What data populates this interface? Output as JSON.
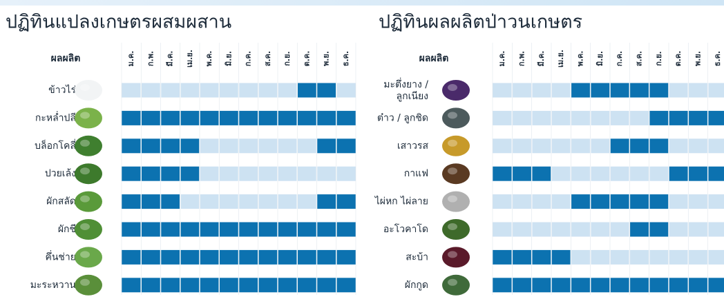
{
  "months": [
    "ม.ค.",
    "ก.พ.",
    "มี.ค.",
    "เม.ย.",
    "พ.ค.",
    "มิ.ย.",
    "ก.ค.",
    "ส.ค.",
    "ก.ย.",
    "ต.ค.",
    "พ.ย.",
    "ธ.ค."
  ],
  "tables": [
    {
      "title": "ปฏิทินแปลงเกษตรผสมผสาน",
      "header": "ผลผลิต",
      "rows": [
        {
          "label": "ข้าวไร่",
          "harvest": [
            0,
            0,
            0,
            0,
            0,
            0,
            0,
            0,
            0,
            1,
            1,
            0
          ]
        },
        {
          "label": "กะหล่ำปลี",
          "harvest": [
            1,
            1,
            1,
            1,
            1,
            1,
            1,
            1,
            1,
            1,
            1,
            1
          ]
        },
        {
          "label": "บล็อกโคลี่",
          "harvest": [
            1,
            1,
            1,
            1,
            0,
            0,
            0,
            0,
            0,
            0,
            1,
            1
          ]
        },
        {
          "label": "ปวยเล้ง",
          "harvest": [
            1,
            1,
            1,
            1,
            0,
            0,
            0,
            0,
            0,
            0,
            0,
            0
          ]
        },
        {
          "label": "ผักสลัด",
          "harvest": [
            1,
            1,
            1,
            0,
            0,
            0,
            0,
            0,
            0,
            0,
            1,
            1
          ]
        },
        {
          "label": "ผักชี",
          "harvest": [
            1,
            1,
            1,
            1,
            1,
            1,
            1,
            1,
            1,
            1,
            1,
            1
          ]
        },
        {
          "label": "คึ่นช่าย",
          "harvest": [
            1,
            1,
            1,
            1,
            1,
            1,
            1,
            1,
            1,
            1,
            1,
            1
          ]
        },
        {
          "label": "มะระหวาน",
          "harvest": [
            1,
            1,
            1,
            1,
            1,
            1,
            1,
            1,
            1,
            1,
            1,
            1
          ]
        }
      ]
    },
    {
      "title": "ปฏิทินผลผลิตป่าวนเกษตร",
      "header": "ผลผลิต",
      "rows": [
        {
          "label": [
            "มะตึ่งยาง /",
            "ลูกเนียง"
          ],
          "harvest": [
            0,
            0,
            0,
            0,
            1,
            1,
            1,
            1,
            1,
            0,
            0,
            0
          ]
        },
        {
          "label": "ต๋าว / ลูกชิด",
          "harvest": [
            0,
            0,
            0,
            0,
            0,
            0,
            0,
            0,
            1,
            1,
            1,
            1
          ]
        },
        {
          "label": "เสาวรส",
          "harvest": [
            0,
            0,
            0,
            0,
            0,
            0,
            1,
            1,
            1,
            0,
            0,
            0
          ]
        },
        {
          "label": "กาแฟ",
          "harvest": [
            1,
            1,
            1,
            0,
            0,
            0,
            0,
            0,
            0,
            1,
            1,
            1
          ]
        },
        {
          "label": "ไผ่หก ไผ่ลาย",
          "harvest": [
            0,
            0,
            0,
            0,
            1,
            1,
            1,
            1,
            1,
            0,
            0,
            0
          ]
        },
        {
          "label": "อะโวคาโด",
          "harvest": [
            0,
            0,
            0,
            0,
            0,
            0,
            0,
            1,
            1,
            0,
            0,
            0
          ]
        },
        {
          "label": "สะบ้า",
          "harvest": [
            1,
            1,
            1,
            1,
            0,
            0,
            0,
            0,
            0,
            0,
            0,
            0
          ]
        },
        {
          "label": "ผักกูด",
          "harvest": [
            1,
            1,
            1,
            1,
            1,
            1,
            1,
            1,
            1,
            1,
            1,
            1
          ]
        }
      ]
    }
  ]
}
